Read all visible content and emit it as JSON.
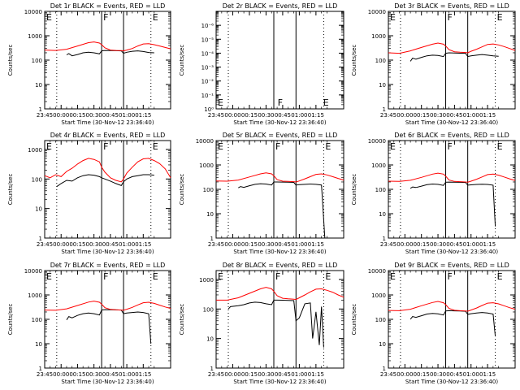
{
  "chart_data": {
    "type": "line",
    "xlabel": "Start Time (30-Nov-12 23:36:40)",
    "ylabel": "Counts/sec",
    "x_tick_labels": [
      "23:45",
      "00:00",
      "00:15",
      "00:30",
      "00:45",
      "01:00",
      "01:15"
    ],
    "x_range_minutes": [
      -15,
      100
    ],
    "log_y": true,
    "grid": false,
    "legend": "in title: BLACK = Events, RED = LLD",
    "series_colors": {
      "events": "#000000",
      "lld": "#ff0000"
    },
    "panels": [
      {
        "title": "Det 1r BLACK = Events, RED = LLD",
        "y_tick_labels": [
          "1",
          "10",
          "100",
          "1000",
          "10000"
        ],
        "ylim": [
          1,
          10000
        ],
        "markers": [
          {
            "letter": "E",
            "x": -15
          },
          {
            "letter": "F",
            "x": 37
          },
          {
            "letter": "E",
            "x": 82
          }
        ],
        "solid_lines": [
          37,
          57
        ],
        "dotted_lines": [
          -4,
          82
        ],
        "lld": {
          "x": [
            -15,
            -5,
            5,
            15,
            25,
            30,
            35,
            37,
            40,
            45,
            50,
            55,
            57,
            60,
            65,
            70,
            75,
            80,
            85,
            90,
            95,
            100
          ],
          "y": [
            260,
            250,
            280,
            380,
            520,
            560,
            500,
            430,
            320,
            260,
            250,
            245,
            240,
            260,
            300,
            380,
            460,
            470,
            430,
            380,
            330,
            290
          ]
        },
        "events": {
          "x": [
            5,
            7,
            10,
            15,
            20,
            25,
            30,
            35,
            37,
            40,
            45,
            50,
            55,
            57,
            60,
            65,
            70,
            75,
            80,
            85
          ],
          "y": [
            165,
            185,
            150,
            170,
            200,
            210,
            200,
            180,
            240,
            250,
            248,
            244,
            240,
            190,
            210,
            230,
            240,
            225,
            205,
            200
          ]
        }
      },
      {
        "title": "Det 2r BLACK = Events, RED = LLD",
        "y_tick_labels": [
          "10⁰",
          "10⁻¹",
          "10⁻²",
          "10⁻³",
          "10⁻⁴",
          "10⁻⁵",
          "10⁻⁶"
        ],
        "ylim": [
          1e-07,
          1
        ],
        "markers": [
          {
            "letter": "E",
            "x": -15
          },
          {
            "letter": "F",
            "x": 39
          },
          {
            "letter": "E",
            "x": 80
          }
        ],
        "solid_lines": [
          37,
          57
        ],
        "dotted_lines": [
          -4,
          82
        ],
        "lld": null,
        "events": null
      },
      {
        "title": "Det 3r BLACK = Events, RED = LLD",
        "y_tick_labels": [
          "1",
          "10",
          "100",
          "1000",
          "10000"
        ],
        "ylim": [
          1,
          10000
        ],
        "markers": [
          {
            "letter": "E",
            "x": -15
          },
          {
            "letter": "F",
            "x": 37
          },
          {
            "letter": "E",
            "x": 82
          }
        ],
        "solid_lines": [
          37,
          57
        ],
        "dotted_lines": [
          -4,
          82
        ],
        "lld": {
          "x": [
            -15,
            -5,
            5,
            15,
            25,
            30,
            35,
            37,
            40,
            45,
            50,
            55,
            57,
            60,
            65,
            70,
            75,
            80,
            85,
            90,
            95,
            100
          ],
          "y": [
            200,
            190,
            240,
            330,
            450,
            500,
            450,
            380,
            270,
            220,
            210,
            205,
            200,
            230,
            280,
            350,
            440,
            460,
            420,
            360,
            300,
            250
          ]
        },
        "events": {
          "x": [
            5,
            7,
            10,
            15,
            20,
            25,
            30,
            35,
            37,
            40,
            45,
            50,
            55,
            57,
            60,
            65,
            70,
            75,
            80,
            85
          ],
          "y": [
            90,
            120,
            110,
            130,
            150,
            160,
            155,
            140,
            190,
            200,
            195,
            192,
            190,
            140,
            150,
            160,
            170,
            160,
            150,
            145
          ]
        }
      },
      {
        "title": "Det 4r BLACK = Events, RED = LLD",
        "y_tick_labels": [
          "1",
          "10",
          "100",
          "1000"
        ],
        "ylim": [
          1,
          2000
        ],
        "markers": [
          {
            "letter": "E",
            "x": -15
          },
          {
            "letter": "F",
            "x": 37
          },
          {
            "letter": "E",
            "x": 82
          }
        ],
        "solid_lines": [
          37,
          57
        ],
        "dotted_lines": [
          -4,
          82
        ],
        "lld": {
          "x": [
            -15,
            -10,
            -5,
            0,
            5,
            10,
            15,
            20,
            25,
            30,
            35,
            37,
            40,
            45,
            50,
            55,
            57,
            60,
            65,
            70,
            75,
            80,
            85,
            90,
            95,
            100
          ],
          "y": [
            130,
            110,
            140,
            120,
            180,
            230,
            320,
            420,
            500,
            460,
            380,
            250,
            170,
            110,
            90,
            80,
            100,
            160,
            250,
            380,
            480,
            500,
            420,
            330,
            220,
            110
          ]
        },
        "events": {
          "x": [
            -4,
            0,
            5,
            10,
            15,
            20,
            25,
            30,
            35,
            37,
            40,
            45,
            50,
            55,
            57,
            60,
            65,
            70,
            75,
            80,
            85
          ],
          "y": [
            55,
            70,
            90,
            85,
            110,
            130,
            140,
            135,
            120,
            110,
            100,
            85,
            70,
            60,
            80,
            100,
            120,
            130,
            140,
            140,
            135
          ]
        }
      },
      {
        "title": "Det 5r BLACK = Events, RED = LLD",
        "y_tick_labels": [
          "1",
          "10",
          "100",
          "1000",
          "10000"
        ],
        "ylim": [
          1,
          10000
        ],
        "markers": [
          {
            "letter": "E",
            "x": -15
          },
          {
            "letter": "F",
            "x": 37
          },
          {
            "letter": "E",
            "x": 82
          }
        ],
        "solid_lines": [
          37,
          57
        ],
        "dotted_lines": [
          -4,
          82
        ],
        "lld": {
          "x": [
            -15,
            -5,
            5,
            15,
            25,
            30,
            35,
            37,
            40,
            45,
            50,
            55,
            57,
            60,
            65,
            70,
            75,
            80,
            85,
            90,
            95,
            100
          ],
          "y": [
            220,
            215,
            240,
            320,
            430,
            470,
            430,
            360,
            250,
            215,
            210,
            205,
            200,
            220,
            270,
            330,
            410,
            430,
            390,
            330,
            280,
            240
          ]
        },
        "events": {
          "x": [
            5,
            7,
            10,
            15,
            20,
            25,
            30,
            35,
            37,
            40,
            45,
            50,
            55,
            57,
            60,
            65,
            70,
            75,
            80,
            83
          ],
          "y": [
            115,
            130,
            120,
            140,
            160,
            170,
            165,
            150,
            200,
            200,
            198,
            195,
            192,
            150,
            155,
            160,
            165,
            160,
            150,
            1
          ]
        }
      },
      {
        "title": "Det 6r BLACK = Events, RED = LLD",
        "y_tick_labels": [
          "1",
          "10",
          "100",
          "1000",
          "10000"
        ],
        "ylim": [
          1,
          10000
        ],
        "markers": [
          {
            "letter": "E",
            "x": -15
          },
          {
            "letter": "F",
            "x": 37
          },
          {
            "letter": "E",
            "x": 82
          }
        ],
        "solid_lines": [
          37,
          57
        ],
        "dotted_lines": [
          -4,
          82
        ],
        "lld": {
          "x": [
            -15,
            -5,
            5,
            15,
            25,
            30,
            35,
            37,
            40,
            45,
            50,
            55,
            57,
            60,
            65,
            70,
            75,
            80,
            85,
            90,
            95,
            100
          ],
          "y": [
            215,
            210,
            235,
            310,
            420,
            460,
            420,
            350,
            240,
            210,
            205,
            200,
            196,
            215,
            260,
            320,
            400,
            420,
            380,
            320,
            270,
            230
          ]
        },
        "events": {
          "x": [
            5,
            7,
            10,
            15,
            20,
            25,
            30,
            35,
            37,
            40,
            45,
            50,
            55,
            57,
            60,
            65,
            70,
            75,
            80,
            82
          ],
          "y": [
            110,
            125,
            118,
            135,
            155,
            165,
            160,
            145,
            195,
            198,
            196,
            194,
            190,
            148,
            152,
            158,
            162,
            158,
            148,
            3
          ]
        }
      },
      {
        "title": "Det 7r BLACK = Events, RED = LLD",
        "y_tick_labels": [
          "1",
          "10",
          "100",
          "1000",
          "10000"
        ],
        "ylim": [
          1,
          10000
        ],
        "markers": [
          {
            "letter": "E",
            "x": -15
          },
          {
            "letter": "F",
            "x": 37
          },
          {
            "letter": "E",
            "x": 82
          }
        ],
        "solid_lines": [
          37,
          57
        ],
        "dotted_lines": [
          -4,
          82
        ],
        "lld": {
          "x": [
            -15,
            -5,
            5,
            15,
            25,
            30,
            35,
            37,
            40,
            45,
            50,
            55,
            57,
            60,
            65,
            70,
            75,
            80,
            85,
            90,
            95,
            100
          ],
          "y": [
            240,
            235,
            270,
            370,
            510,
            560,
            500,
            420,
            300,
            255,
            245,
            240,
            236,
            260,
            310,
            390,
            480,
            500,
            450,
            380,
            320,
            280
          ]
        },
        "events": {
          "x": [
            5,
            7,
            10,
            15,
            20,
            25,
            30,
            35,
            37,
            40,
            45,
            50,
            55,
            57,
            60,
            65,
            70,
            75,
            80,
            82
          ],
          "y": [
            95,
            130,
            115,
            145,
            170,
            180,
            170,
            150,
            240,
            250,
            248,
            244,
            240,
            170,
            180,
            190,
            200,
            190,
            170,
            10
          ]
        }
      },
      {
        "title": "Det 8r BLACK = Events, RED = LLD",
        "y_tick_labels": [
          "1",
          "10",
          "100",
          "1000"
        ],
        "ylim": [
          1,
          2000
        ],
        "markers": [
          {
            "letter": "E",
            "x": -15
          },
          {
            "letter": "F",
            "x": 37
          },
          {
            "letter": "E",
            "x": 82
          }
        ],
        "solid_lines": [
          37,
          57
        ],
        "dotted_lines": [
          -4,
          82
        ],
        "lld": {
          "x": [
            -15,
            -5,
            5,
            15,
            25,
            30,
            35,
            37,
            40,
            45,
            50,
            55,
            57,
            60,
            65,
            70,
            75,
            80,
            85,
            90,
            95,
            100
          ],
          "y": [
            200,
            200,
            240,
            340,
            480,
            540,
            480,
            400,
            280,
            230,
            220,
            215,
            210,
            240,
            300,
            380,
            470,
            480,
            430,
            370,
            300,
            250
          ]
        },
        "events": {
          "x": [
            -4,
            -2,
            5,
            10,
            15,
            20,
            25,
            30,
            35,
            37,
            40,
            45,
            50,
            55,
            57,
            60,
            65,
            70,
            72,
            75,
            78,
            80,
            82
          ],
          "y": [
            100,
            120,
            130,
            140,
            160,
            170,
            165,
            150,
            140,
            200,
            200,
            198,
            196,
            192,
            40,
            50,
            150,
            160,
            10,
            80,
            6,
            120,
            5
          ]
        }
      },
      {
        "title": "Det 9r BLACK = Events, RED = LLD",
        "y_tick_labels": [
          "1",
          "10",
          "100",
          "1000",
          "10000"
        ],
        "ylim": [
          1,
          10000
        ],
        "markers": [
          {
            "letter": "E",
            "x": -15
          },
          {
            "letter": "F",
            "x": 37
          },
          {
            "letter": "E",
            "x": 82
          }
        ],
        "solid_lines": [
          37,
          57
        ],
        "dotted_lines": [
          -4,
          82
        ],
        "lld": {
          "x": [
            -15,
            -5,
            5,
            15,
            25,
            30,
            35,
            37,
            40,
            45,
            50,
            55,
            57,
            60,
            65,
            70,
            75,
            80,
            85,
            90,
            95,
            100
          ],
          "y": [
            230,
            225,
            260,
            360,
            490,
            540,
            480,
            400,
            280,
            235,
            225,
            220,
            216,
            240,
            290,
            370,
            460,
            480,
            430,
            360,
            300,
            260
          ]
        },
        "events": {
          "x": [
            5,
            7,
            10,
            15,
            20,
            25,
            30,
            35,
            37,
            40,
            45,
            50,
            55,
            57,
            60,
            65,
            70,
            75,
            80,
            82
          ],
          "y": [
            100,
            130,
            120,
            140,
            165,
            175,
            168,
            150,
            220,
            225,
            222,
            218,
            214,
            160,
            170,
            180,
            190,
            180,
            165,
            20
          ]
        }
      }
    ]
  }
}
